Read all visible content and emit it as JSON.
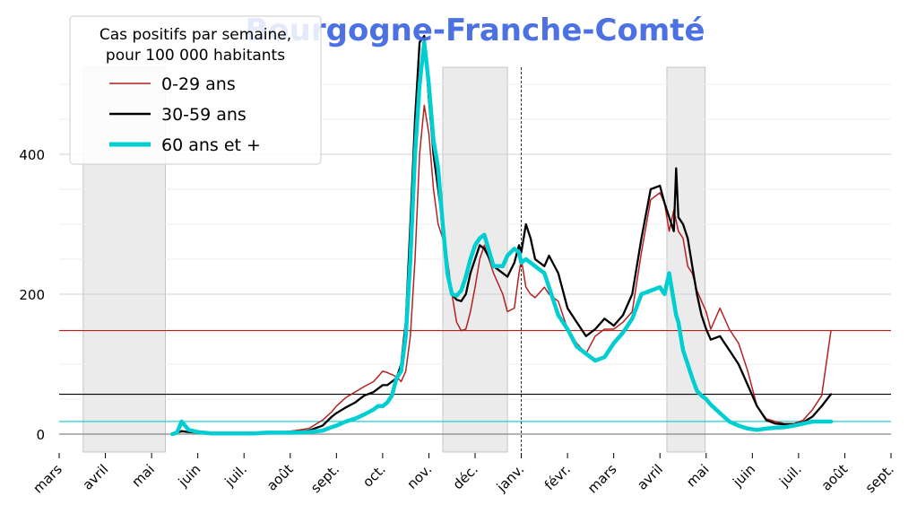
{
  "chart_data": {
    "type": "line",
    "title": "Bourgogne-Franche-Comté",
    "xlabel": "",
    "ylabel": "",
    "x_ticks": [
      "mars",
      "avril",
      "mai",
      "juin",
      "juil.",
      "août",
      "sept.",
      "oct.",
      "nov.",
      "déc.",
      "janv.",
      "févr.",
      "mars",
      "avril",
      "mai",
      "juin",
      "juil.",
      "août",
      "sept."
    ],
    "y_ticks": [
      0,
      200,
      400
    ],
    "ylim": [
      -25,
      560
    ],
    "grid": "horizontal",
    "legend": {
      "title_line1": "Cas positifs par semaine,",
      "title_line2": "pour 100 000 habitants",
      "placement": "top-left"
    },
    "shaded_periods": [
      [
        0.52,
        2.3
      ],
      [
        8.3,
        9.7
      ],
      [
        13.15,
        13.98
      ]
    ],
    "vline_month": 10.0,
    "series": [
      {
        "name": "0-29 ans",
        "color": "#b22222",
        "hline": 148,
        "x": [
          2.45,
          2.55,
          2.65,
          2.8,
          3.0,
          3.3,
          3.6,
          3.9,
          4.2,
          4.5,
          4.8,
          5.1,
          5.4,
          5.7,
          5.9,
          6.0,
          6.2,
          6.4,
          6.6,
          6.8,
          6.9,
          7.0,
          7.1,
          7.2,
          7.3,
          7.4,
          7.5,
          7.6,
          7.7,
          7.8,
          7.9,
          8.0,
          8.1,
          8.2,
          8.3,
          8.4,
          8.5,
          8.6,
          8.7,
          8.8,
          8.9,
          9.0,
          9.1,
          9.2,
          9.4,
          9.6,
          9.7,
          9.85,
          9.95,
          10.0,
          10.1,
          10.2,
          10.3,
          10.5,
          10.6,
          10.8,
          11.0,
          11.2,
          11.4,
          11.6,
          11.8,
          12.0,
          12.2,
          12.4,
          12.6,
          12.8,
          13.0,
          13.1,
          13.2,
          13.3,
          13.35,
          13.4,
          13.5,
          13.6,
          13.7,
          13.8,
          13.9,
          14.0,
          14.1,
          14.3,
          14.5,
          14.7,
          14.9,
          15.1,
          15.3,
          15.5,
          15.7,
          15.9,
          16.1,
          16.3,
          16.5,
          16.7
        ],
        "y": [
          0,
          2,
          5,
          3,
          2,
          1,
          1,
          1,
          1,
          2,
          3,
          5,
          8,
          20,
          32,
          40,
          52,
          60,
          68,
          75,
          82,
          90,
          88,
          85,
          82,
          75,
          90,
          140,
          250,
          400,
          470,
          430,
          350,
          300,
          280,
          250,
          200,
          160,
          148,
          150,
          175,
          210,
          250,
          270,
          230,
          200,
          175,
          180,
          230,
          250,
          210,
          200,
          195,
          210,
          200,
          190,
          150,
          130,
          115,
          140,
          150,
          150,
          160,
          175,
          260,
          335,
          345,
          330,
          290,
          320,
          305,
          290,
          280,
          240,
          230,
          205,
          190,
          175,
          150,
          180,
          150,
          130,
          90,
          40,
          22,
          18,
          15,
          15,
          20,
          35,
          55,
          148
        ]
      },
      {
        "name": "30-59 ans",
        "color": "#000000",
        "hline": 57,
        "x": [
          2.45,
          2.55,
          2.65,
          2.8,
          3.0,
          3.3,
          3.6,
          3.9,
          4.2,
          4.5,
          4.8,
          5.1,
          5.4,
          5.7,
          5.9,
          6.0,
          6.2,
          6.4,
          6.6,
          6.8,
          6.9,
          7.0,
          7.1,
          7.2,
          7.3,
          7.4,
          7.5,
          7.6,
          7.7,
          7.8,
          7.9,
          8.0,
          8.1,
          8.2,
          8.3,
          8.4,
          8.5,
          8.6,
          8.7,
          8.8,
          8.9,
          9.0,
          9.1,
          9.2,
          9.4,
          9.6,
          9.7,
          9.85,
          9.95,
          10.0,
          10.1,
          10.2,
          10.3,
          10.5,
          10.6,
          10.8,
          11.0,
          11.2,
          11.4,
          11.6,
          11.8,
          12.0,
          12.2,
          12.4,
          12.6,
          12.8,
          13.0,
          13.1,
          13.2,
          13.3,
          13.35,
          13.4,
          13.5,
          13.6,
          13.7,
          13.8,
          13.9,
          14.0,
          14.1,
          14.3,
          14.5,
          14.7,
          14.9,
          15.1,
          15.3,
          15.5,
          15.7,
          15.9,
          16.1,
          16.3,
          16.5,
          16.7
        ],
        "y": [
          0,
          2,
          4,
          3,
          2,
          1,
          1,
          1,
          1,
          2,
          2,
          3,
          5,
          12,
          25,
          30,
          38,
          45,
          55,
          60,
          65,
          70,
          70,
          75,
          80,
          100,
          160,
          300,
          450,
          560,
          600,
          480,
          400,
          350,
          300,
          240,
          200,
          192,
          190,
          200,
          230,
          250,
          270,
          265,
          240,
          230,
          225,
          245,
          270,
          260,
          300,
          280,
          250,
          240,
          255,
          230,
          180,
          160,
          140,
          150,
          165,
          155,
          170,
          200,
          280,
          350,
          355,
          330,
          310,
          290,
          380,
          310,
          300,
          280,
          240,
          200,
          170,
          150,
          135,
          140,
          120,
          100,
          70,
          40,
          20,
          15,
          14,
          14,
          17,
          25,
          40,
          57
        ]
      },
      {
        "name": "60 ans et +",
        "color": "#00ced1",
        "hline": 18,
        "x": [
          2.45,
          2.55,
          2.65,
          2.8,
          3.0,
          3.3,
          3.6,
          3.9,
          4.2,
          4.5,
          4.8,
          5.1,
          5.4,
          5.7,
          5.9,
          6.0,
          6.2,
          6.4,
          6.6,
          6.8,
          6.9,
          7.0,
          7.1,
          7.2,
          7.3,
          7.4,
          7.5,
          7.6,
          7.7,
          7.8,
          7.9,
          8.0,
          8.1,
          8.2,
          8.3,
          8.4,
          8.5,
          8.6,
          8.7,
          8.8,
          8.9,
          9.0,
          9.1,
          9.2,
          9.4,
          9.6,
          9.7,
          9.85,
          9.95,
          10.0,
          10.1,
          10.2,
          10.3,
          10.5,
          10.6,
          10.8,
          11.0,
          11.2,
          11.4,
          11.6,
          11.8,
          12.0,
          12.2,
          12.4,
          12.6,
          12.8,
          13.0,
          13.1,
          13.2,
          13.3,
          13.35,
          13.4,
          13.5,
          13.6,
          13.7,
          13.8,
          13.9,
          14.0,
          14.1,
          14.3,
          14.5,
          14.7,
          14.9,
          15.1,
          15.3,
          15.5,
          15.7,
          15.9,
          16.1,
          16.3,
          16.5,
          16.7
        ],
        "y": [
          0,
          2,
          18,
          6,
          3,
          1,
          1,
          1,
          1,
          2,
          2,
          2,
          3,
          5,
          10,
          12,
          18,
          22,
          28,
          35,
          40,
          40,
          45,
          55,
          80,
          90,
          140,
          250,
          400,
          500,
          560,
          500,
          420,
          380,
          300,
          230,
          200,
          198,
          205,
          225,
          250,
          270,
          280,
          285,
          240,
          240,
          255,
          265,
          260,
          245,
          250,
          245,
          240,
          230,
          210,
          170,
          150,
          125,
          115,
          105,
          110,
          130,
          145,
          165,
          200,
          205,
          210,
          200,
          230,
          190,
          170,
          160,
          120,
          100,
          80,
          62,
          55,
          50,
          42,
          30,
          18,
          12,
          8,
          6,
          8,
          9,
          10,
          12,
          15,
          18,
          18,
          18
        ]
      }
    ]
  }
}
